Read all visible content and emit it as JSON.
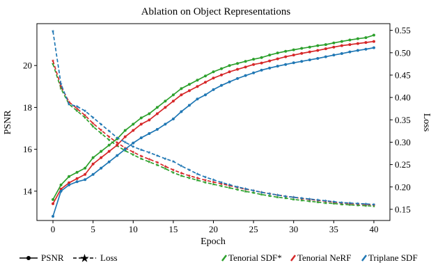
{
  "chart_data": {
    "type": "line",
    "title": "Ablation on Object Representations",
    "xlabel": "Epoch",
    "ylabel_left": "PSNR",
    "ylabel_right": "Loss",
    "xlim": [
      -2,
      42
    ],
    "ylim_left": [
      12.6,
      22.0
    ],
    "ylim_right": [
      0.125,
      0.565
    ],
    "x_ticks": [
      0,
      5,
      10,
      15,
      20,
      25,
      30,
      35,
      40
    ],
    "y_ticks_left": [
      14,
      16,
      18,
      20
    ],
    "y_ticks_right": [
      0.15,
      0.2,
      0.25,
      0.3,
      0.35,
      0.4,
      0.45,
      0.5,
      0.55
    ],
    "grid": false,
    "legend_placement": "bottom",
    "x": [
      0,
      1,
      2,
      3,
      4,
      5,
      6,
      7,
      8,
      9,
      10,
      11,
      12,
      13,
      14,
      15,
      16,
      17,
      18,
      19,
      20,
      21,
      22,
      23,
      24,
      25,
      26,
      27,
      28,
      29,
      30,
      31,
      32,
      33,
      34,
      35,
      36,
      37,
      38,
      39,
      40
    ],
    "series": [
      {
        "name": "Tenorial SDF*",
        "color": "#2ca02c",
        "psnr": [
          13.6,
          14.3,
          14.7,
          14.9,
          15.1,
          15.6,
          15.9,
          16.2,
          16.5,
          16.9,
          17.2,
          17.5,
          17.7,
          18.0,
          18.3,
          18.6,
          18.9,
          19.1,
          19.3,
          19.5,
          19.7,
          19.85,
          20.0,
          20.1,
          20.2,
          20.3,
          20.38,
          20.5,
          20.6,
          20.68,
          20.75,
          20.82,
          20.88,
          20.95,
          21.0,
          21.08,
          21.15,
          21.22,
          21.28,
          21.33,
          21.45
        ],
        "loss": [
          0.475,
          0.42,
          0.385,
          0.37,
          0.355,
          0.335,
          0.32,
          0.305,
          0.292,
          0.281,
          0.272,
          0.263,
          0.256,
          0.249,
          0.241,
          0.232,
          0.225,
          0.22,
          0.215,
          0.21,
          0.206,
          0.202,
          0.198,
          0.194,
          0.19,
          0.187,
          0.183,
          0.18,
          0.177,
          0.175,
          0.172,
          0.17,
          0.168,
          0.166,
          0.164,
          0.163,
          0.161,
          0.16,
          0.159,
          0.158,
          0.157
        ]
      },
      {
        "name": "Tenorial NeRF",
        "color": "#d62728",
        "psnr": [
          13.4,
          14.1,
          14.4,
          14.6,
          14.8,
          15.3,
          15.6,
          15.9,
          16.2,
          16.6,
          16.9,
          17.2,
          17.4,
          17.7,
          18.0,
          18.3,
          18.6,
          18.8,
          19.0,
          19.2,
          19.4,
          19.55,
          19.7,
          19.82,
          19.93,
          20.05,
          20.12,
          20.22,
          20.32,
          20.42,
          20.5,
          20.58,
          20.65,
          20.72,
          20.8,
          20.88,
          20.95,
          21.0,
          21.05,
          21.1,
          21.15
        ],
        "loss": [
          0.482,
          0.425,
          0.39,
          0.375,
          0.36,
          0.342,
          0.327,
          0.312,
          0.299,
          0.287,
          0.278,
          0.269,
          0.262,
          0.255,
          0.246,
          0.238,
          0.231,
          0.225,
          0.22,
          0.215,
          0.211,
          0.207,
          0.203,
          0.199,
          0.195,
          0.192,
          0.188,
          0.185,
          0.182,
          0.179,
          0.177,
          0.174,
          0.172,
          0.17,
          0.168,
          0.166,
          0.164,
          0.163,
          0.162,
          0.161,
          0.16
        ]
      },
      {
        "name": "Triplane SDF",
        "color": "#1f77b4",
        "psnr": [
          12.8,
          14.0,
          14.3,
          14.45,
          14.55,
          14.8,
          15.1,
          15.4,
          15.7,
          16.0,
          16.3,
          16.55,
          16.75,
          16.95,
          17.2,
          17.45,
          17.8,
          18.1,
          18.4,
          18.6,
          18.85,
          19.05,
          19.22,
          19.38,
          19.52,
          19.65,
          19.78,
          19.88,
          19.97,
          20.05,
          20.13,
          20.2,
          20.27,
          20.34,
          20.42,
          20.5,
          20.57,
          20.65,
          20.72,
          20.78,
          20.85
        ],
        "loss": [
          0.548,
          0.43,
          0.385,
          0.38,
          0.37,
          0.355,
          0.34,
          0.325,
          0.31,
          0.3,
          0.29,
          0.283,
          0.277,
          0.27,
          0.263,
          0.257,
          0.247,
          0.238,
          0.229,
          0.222,
          0.216,
          0.21,
          0.205,
          0.2,
          0.196,
          0.192,
          0.188,
          0.185,
          0.182,
          0.179,
          0.177,
          0.175,
          0.173,
          0.171,
          0.169,
          0.167,
          0.165,
          0.164,
          0.163,
          0.162,
          0.161
        ]
      }
    ],
    "metric_legend": [
      {
        "label": "PSNR",
        "style": "solid",
        "marker": "circle"
      },
      {
        "label": "Loss",
        "style": "dashed",
        "marker": "star"
      }
    ]
  }
}
